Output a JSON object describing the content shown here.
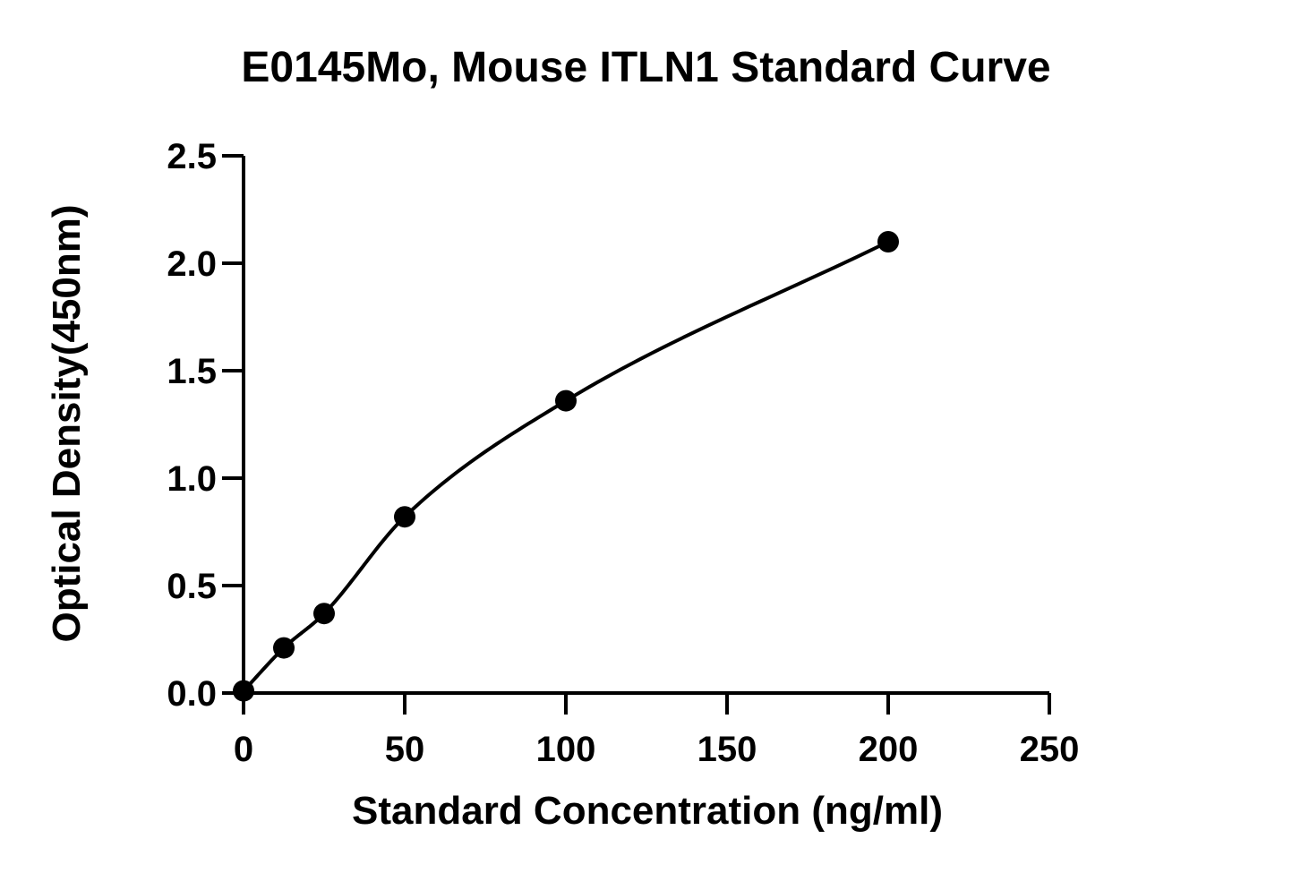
{
  "chart_data": {
    "type": "scatter",
    "title": "E0145Mo, Mouse ITLN1 Standard Curve",
    "xlabel": "Standard Concentration (ng/ml)",
    "ylabel": "Optical Density(450nm)",
    "xlim": [
      0,
      250
    ],
    "ylim": [
      0,
      2.5
    ],
    "x_ticks": [
      "0",
      "50",
      "100",
      "150",
      "200",
      "250"
    ],
    "y_ticks": [
      "0.0",
      "0.5",
      "1.0",
      "1.5",
      "2.0",
      "2.5"
    ],
    "grid": false,
    "fit_curve": true,
    "colors": {
      "points": "#000000",
      "curve": "#000000",
      "axes": "#000000"
    },
    "series": [
      {
        "x": [
          0,
          12.5,
          25,
          50,
          100,
          200
        ],
        "y": [
          0.01,
          0.21,
          0.37,
          0.82,
          1.36,
          2.1
        ]
      }
    ]
  }
}
